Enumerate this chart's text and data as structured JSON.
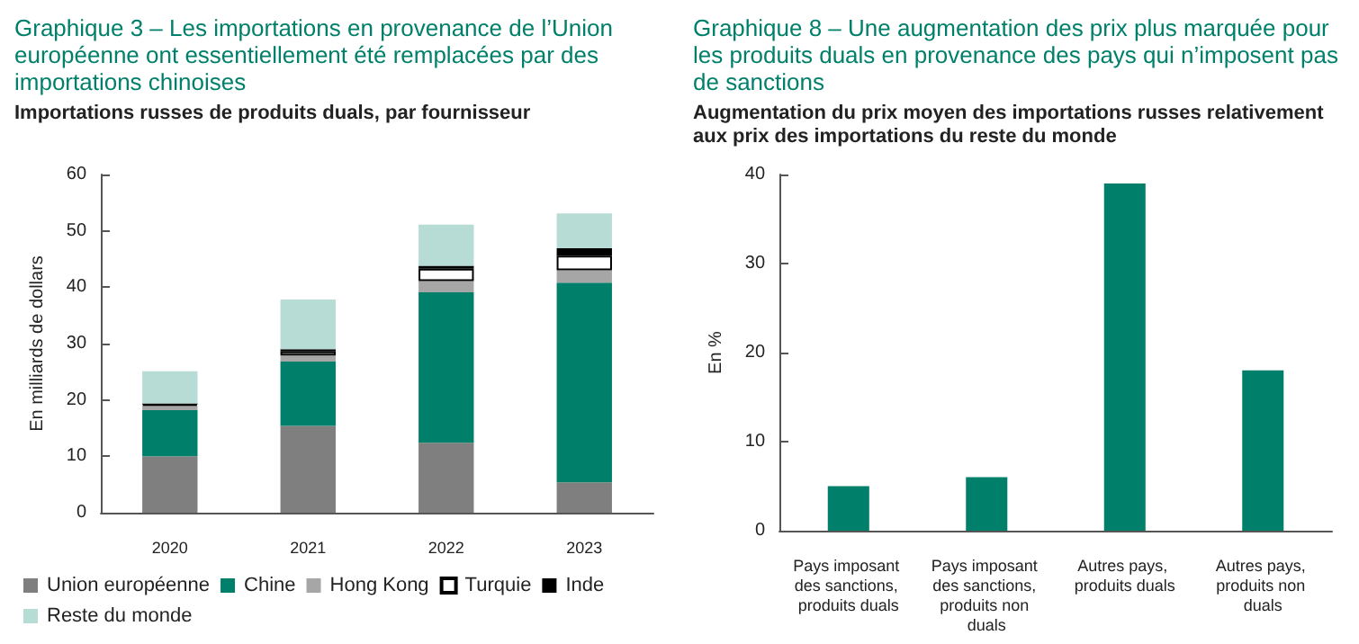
{
  "chart_data": [
    {
      "type": "bar",
      "title": "Graphique 3 – Les importations en provenance de l’Union européenne ont essentiellement été remplacées par des importations chinoises",
      "subtitle": "Importations russes de produits duals, par fournisseur",
      "ylabel": "En milliards de dollars",
      "categories": [
        "2020",
        "2021",
        "2022",
        "2023"
      ],
      "stacked": true,
      "series": [
        {
          "name": "Union européenne",
          "color": "#7f7f7f",
          "values": [
            10,
            15.4,
            12.4,
            5.4
          ]
        },
        {
          "name": "Chine",
          "color": "#00806a",
          "values": [
            8.2,
            11.4,
            26.7,
            35.4
          ]
        },
        {
          "name": "Hong Kong",
          "color": "#a6a6a6",
          "values": [
            0.8,
            1.1,
            2,
            2.2
          ]
        },
        {
          "name": "Turquie",
          "color": "#ffffff",
          "values": [
            0.2,
            0.7,
            2.2,
            2.6
          ]
        },
        {
          "name": "Inde",
          "color": "#000000",
          "values": [
            0.2,
            0.4,
            0.5,
            1.3
          ]
        },
        {
          "name": "Reste du monde",
          "color": "#b7dcd6",
          "values": [
            5.7,
            8.8,
            7.3,
            6.2
          ]
        }
      ],
      "ylim": [
        0,
        60
      ],
      "yticks": [
        0,
        10,
        20,
        30,
        40,
        50,
        60
      ],
      "grid": false,
      "legend": "bottom"
    },
    {
      "type": "bar",
      "title": "Graphique 8 – Une augmentation des prix plus marquée pour les produits duals en provenance des pays qui n’imposent pas de sanctions",
      "subtitle": "Augmentation du prix moyen des importations russes relativement aux prix des importations du reste du monde",
      "ylabel": "En %",
      "categories": [
        "Pays imposant des sanctions, produits duals",
        "Pays imposant des sanctions, produits non duals",
        "Autres pays, produits duals",
        "Autres pays, produits non duals"
      ],
      "values": [
        5,
        6,
        39,
        18
      ],
      "color": "#00806a",
      "ylim": [
        0,
        40
      ],
      "yticks": [
        0,
        10,
        20,
        30,
        40
      ],
      "grid": false,
      "legend": false
    }
  ]
}
